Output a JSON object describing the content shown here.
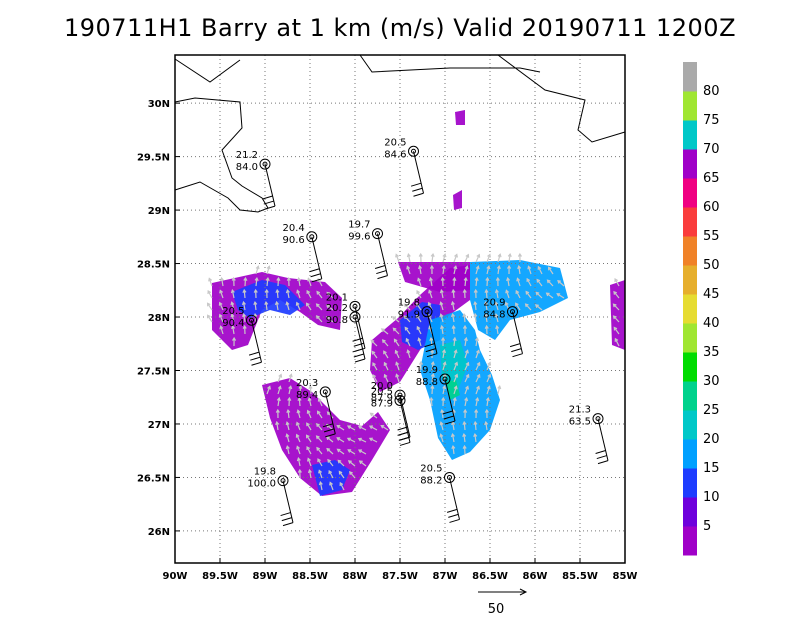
{
  "title": "190711H1 Barry at 1 km (m/s) Valid 20190711 1200Z",
  "map": {
    "lon_range": [
      -90,
      -85
    ],
    "lat_range": [
      25.7,
      30.45
    ],
    "grid": true,
    "lon_labels": [
      "90W",
      "89.5W",
      "89W",
      "88.5W",
      "88W",
      "87.5W",
      "87W",
      "86.5W",
      "86W",
      "85.5W",
      "85W"
    ],
    "lat_labels": [
      "26N",
      "26.5N",
      "27N",
      "27.5N",
      "28N",
      "28.5N",
      "29N",
      "29.5N",
      "30N"
    ]
  },
  "colorbar": {
    "labels": [
      "5",
      "10",
      "15",
      "20",
      "25",
      "30",
      "35",
      "40",
      "45",
      "50",
      "55",
      "60",
      "65",
      "70",
      "75",
      "80"
    ],
    "colors": [
      "#a000c8",
      "#6e00dc",
      "#1e3cff",
      "#00a0ff",
      "#00c8c8",
      "#00d28c",
      "#00dc00",
      "#a0e632",
      "#e6dc32",
      "#e6af2d",
      "#f08228",
      "#fa3c3c",
      "#f00082",
      "#a000c8",
      "#00c8c8",
      "#a0e632",
      "#aaaaaa"
    ]
  },
  "reference_vector": {
    "label": "50"
  },
  "stations": [
    {
      "lon": -89.0,
      "lat": 29.43,
      "top": "21.2",
      "bottom": "84.0"
    },
    {
      "lon": -87.35,
      "lat": 29.55,
      "top": "20.5",
      "bottom": "84.6"
    },
    {
      "lon": -88.48,
      "lat": 28.75,
      "top": "20.4",
      "bottom": "90.6"
    },
    {
      "lon": -87.75,
      "lat": 28.78,
      "top": "19.7",
      "bottom": "99.6"
    },
    {
      "lon": -89.15,
      "lat": 27.97,
      "top": "20.5",
      "bottom": "90.4"
    },
    {
      "lon": -88.0,
      "lat": 28.1,
      "top": "20.1",
      "bottom": ""
    },
    {
      "lon": -88.0,
      "lat": 28.0,
      "top": "20.2",
      "bottom": "90.8"
    },
    {
      "lon": -87.2,
      "lat": 28.05,
      "top": "19.8",
      "bottom": "91.9"
    },
    {
      "lon": -86.25,
      "lat": 28.05,
      "top": "20.9",
      "bottom": "84.8"
    },
    {
      "lon": -88.33,
      "lat": 27.3,
      "top": "20.3",
      "bottom": "89.4"
    },
    {
      "lon": -87.5,
      "lat": 27.27,
      "top": "20.0",
      "bottom": "87.9"
    },
    {
      "lon": -87.5,
      "lat": 27.22,
      "top": "20.5",
      "bottom": "87.9"
    },
    {
      "lon": -87.0,
      "lat": 27.42,
      "top": "19.9",
      "bottom": "88.8"
    },
    {
      "lon": -85.3,
      "lat": 27.05,
      "top": "21.3",
      "bottom": "63.5"
    },
    {
      "lon": -86.95,
      "lat": 26.5,
      "top": "20.5",
      "bottom": "88.2"
    },
    {
      "lon": -88.8,
      "lat": 26.47,
      "top": "19.8",
      "bottom": "100.0"
    }
  ]
}
